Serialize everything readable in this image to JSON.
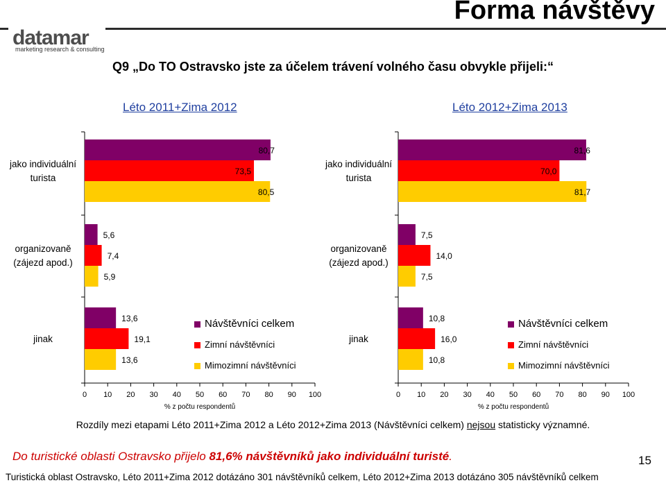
{
  "slide_title": "Forma návštěvy",
  "logo": {
    "name": "datamar",
    "tagline": "marketing research & consulting"
  },
  "question": "Q9 „Do TO Ostravsko jste za účelem trávení volného času obvykle přijeli:“",
  "periods": [
    "Léto 2011+Zima 2012",
    "Léto 2012+Zima 2013"
  ],
  "colors": {
    "celkem": "#800066",
    "zimni": "#ff0000",
    "mimozimni": "#ffcc00"
  },
  "legend": [
    "Návštěvníci celkem",
    "Zimní návštěvníci",
    "Mimozimní návštěvníci"
  ],
  "chart_data": [
    {
      "type": "bar",
      "orientation": "horizontal",
      "title": "Léto 2011+Zima 2012",
      "categories": [
        "jako individuální turista",
        "organizovaně (zájezd apod.)",
        "jinak"
      ],
      "series": [
        {
          "name": "Návštěvníci celkem",
          "values": [
            80.7,
            5.6,
            13.6
          ]
        },
        {
          "name": "Zimní návštěvníci",
          "values": [
            73.5,
            7.4,
            19.1
          ]
        },
        {
          "name": "Mimozimní návštěvníci",
          "values": [
            80.5,
            5.9,
            13.6
          ]
        }
      ],
      "value_labels": [
        [
          "80,7",
          "5,6",
          "13,6"
        ],
        [
          "73,5",
          "7,4",
          "19,1"
        ],
        [
          "80,5",
          "5,9",
          "13,6"
        ]
      ],
      "xlim": [
        0,
        100
      ],
      "xticks": [
        "0",
        "10",
        "20",
        "30",
        "40",
        "50",
        "60",
        "70",
        "80",
        "90",
        "100"
      ],
      "xlabel": "% z počtu respondentů",
      "legend_position": "right"
    },
    {
      "type": "bar",
      "orientation": "horizontal",
      "title": "Léto 2012+Zima 2013",
      "categories": [
        "jako individuální turista",
        "organizovaně (zájezd apod.)",
        "jinak"
      ],
      "series": [
        {
          "name": "Návštěvníci celkem",
          "values": [
            81.6,
            7.5,
            10.8
          ]
        },
        {
          "name": "Zimní návštěvníci",
          "values": [
            70.0,
            14.0,
            16.0
          ]
        },
        {
          "name": "Mimozimní návštěvníci",
          "values": [
            81.7,
            7.5,
            10.8
          ]
        }
      ],
      "value_labels": [
        [
          "81,6",
          "7,5",
          "10,8"
        ],
        [
          "70,0",
          "14,0",
          "16,0"
        ],
        [
          "81,7",
          "7,5",
          "10,8"
        ]
      ],
      "xlim": [
        0,
        100
      ],
      "xticks": [
        "0",
        "10",
        "20",
        "30",
        "40",
        "50",
        "60",
        "70",
        "80",
        "90",
        "100"
      ],
      "xlabel": "% z počtu respondentů",
      "legend_position": "right"
    }
  ],
  "note": {
    "before": "Rozdíly mezi etapami Léto 2011+Zima 2012 a Léto 2012+Zima 2013 (Návštěvníci celkem) ",
    "underlined": "nejsou",
    "after": " statisticky významné."
  },
  "conclusion": {
    "before": "Do turistické oblasti Ostravsko přijelo ",
    "bold": "81,6% návštěvníků jako individuální turisté",
    "after": "."
  },
  "page_number": "15",
  "footer": "Turistická oblast Ostravsko, Léto 2011+Zima 2012 dotázáno 301 návštěvníků celkem,  Léto 2012+Zima 2013 dotázáno 305 návštěvníků celkem"
}
